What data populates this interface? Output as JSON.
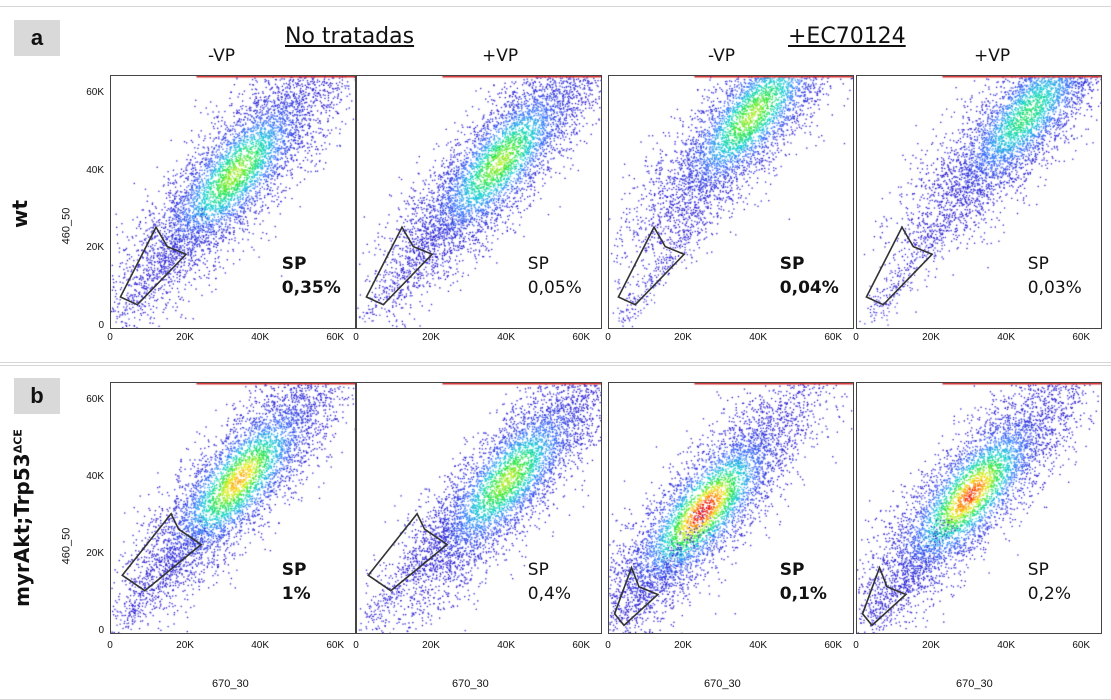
{
  "figure": {
    "panel_labels": [
      "a",
      "b"
    ],
    "headers": {
      "untreated": "No tratadas",
      "treated": "+EC70124",
      "columns": [
        "-VP",
        "+VP",
        "-VP",
        "+VP"
      ]
    },
    "row_labels": {
      "a": "wt",
      "b_main": "myrAkt;Trp53",
      "b_sup": "ΔCE"
    },
    "axes": {
      "ylabel": "460_50",
      "xlabel": "670_30",
      "yticks": [
        "60K",
        "40K",
        "20K",
        "0"
      ],
      "xticks": [
        "0",
        "20K",
        "40K",
        "60K"
      ]
    }
  },
  "chart_data": [
    {
      "type": "scatter",
      "row": "wt",
      "column": "No tratadas -VP",
      "gate_label": "SP",
      "value_label": "0,35%",
      "sp_percent": 0.35,
      "highlight": true,
      "xlabel": "",
      "ylabel": "460_50",
      "xlim": [
        0,
        65000
      ],
      "ylim": [
        0,
        65000
      ],
      "density_center": [
        33000,
        40000
      ],
      "density_peak": "green"
    },
    {
      "type": "scatter",
      "row": "wt",
      "column": "No tratadas +VP",
      "gate_label": "SP",
      "value_label": "0,05%",
      "sp_percent": 0.05,
      "highlight": false,
      "xlabel": "",
      "ylabel": "",
      "xlim": [
        0,
        65000
      ],
      "ylim": [
        0,
        65000
      ],
      "density_center": [
        38000,
        43000
      ],
      "density_peak": "green"
    },
    {
      "type": "scatter",
      "row": "wt",
      "column": "+EC70124 -VP",
      "gate_label": "SP",
      "value_label": "0,04%",
      "sp_percent": 0.04,
      "highlight": true,
      "xlabel": "",
      "ylabel": "",
      "xlim": [
        0,
        65000
      ],
      "ylim": [
        0,
        65000
      ],
      "density_center": [
        38000,
        55000
      ],
      "density_peak": "green"
    },
    {
      "type": "scatter",
      "row": "wt",
      "column": "+EC70124 +VP",
      "gate_label": "SP",
      "value_label": "0,03%",
      "sp_percent": 0.03,
      "highlight": false,
      "xlabel": "",
      "ylabel": "",
      "xlim": [
        0,
        65000
      ],
      "ylim": [
        0,
        65000
      ],
      "density_center": [
        45000,
        55000
      ],
      "density_peak": "cyan"
    },
    {
      "type": "scatter",
      "row": "myrAkt;Trp53ΔCE",
      "column": "No tratadas -VP",
      "gate_label": "SP",
      "value_label": "1%",
      "sp_percent": 1,
      "highlight": true,
      "xlabel": "670_30",
      "ylabel": "460_50",
      "xlim": [
        0,
        65000
      ],
      "ylim": [
        0,
        65000
      ],
      "density_center": [
        34000,
        40000
      ],
      "density_peak": "yellow"
    },
    {
      "type": "scatter",
      "row": "myrAkt;Trp53ΔCE",
      "column": "No tratadas +VP",
      "gate_label": "SP",
      "value_label": "0,4%",
      "sp_percent": 0.4,
      "highlight": false,
      "xlabel": "670_30",
      "ylabel": "",
      "xlim": [
        0,
        65000
      ],
      "ylim": [
        0,
        65000
      ],
      "density_center": [
        40000,
        40000
      ],
      "density_peak": "green"
    },
    {
      "type": "scatter",
      "row": "myrAkt;Trp53ΔCE",
      "column": "+EC70124 -VP",
      "gate_label": "SP",
      "value_label": "0,1%",
      "sp_percent": 0.1,
      "highlight": true,
      "xlabel": "670_30",
      "ylabel": "",
      "xlim": [
        0,
        65000
      ],
      "ylim": [
        0,
        65000
      ],
      "density_center": [
        25000,
        32000
      ],
      "density_peak": "red"
    },
    {
      "type": "scatter",
      "row": "myrAkt;Trp53ΔCE",
      "column": "+EC70124 +VP",
      "gate_label": "SP",
      "value_label": "0,2%",
      "sp_percent": 0.2,
      "highlight": false,
      "xlabel": "670_30",
      "ylabel": "",
      "xlim": [
        0,
        65000
      ],
      "ylim": [
        0,
        65000
      ],
      "density_center": [
        30000,
        36000
      ],
      "density_peak": "orange"
    }
  ]
}
